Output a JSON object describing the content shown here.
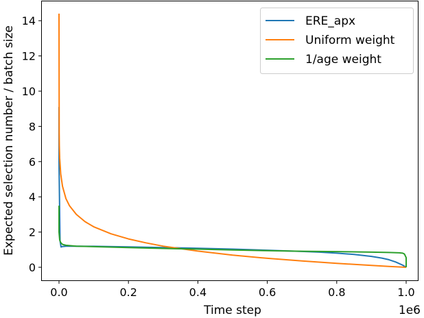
{
  "chart_data": {
    "type": "line",
    "title": "",
    "xlabel": "Time step",
    "ylabel": "Expected selection number / batch size",
    "x_offset_label": "1e6",
    "xlim": [
      -0.05,
      1.035
    ],
    "ylim": [
      -0.7,
      15.1
    ],
    "xticks": [
      0.0,
      0.2,
      0.4,
      0.6,
      0.8,
      1.0
    ],
    "xtick_labels": [
      "0.0",
      "0.2",
      "0.4",
      "0.6",
      "0.8",
      "1.0"
    ],
    "yticks": [
      0,
      2,
      4,
      6,
      8,
      10,
      12,
      14
    ],
    "ytick_labels": [
      "0",
      "2",
      "4",
      "6",
      "8",
      "10",
      "12",
      "14"
    ],
    "grid": false,
    "legend_position": "upper right",
    "series": [
      {
        "name": "ERE_apx",
        "color": "#1f77b4",
        "x": [
          0.0,
          0.0,
          0.003,
          0.006,
          0.01,
          0.02,
          0.05,
          0.1,
          0.2,
          0.3,
          0.4,
          0.5,
          0.6,
          0.7,
          0.75,
          0.8,
          0.85,
          0.9,
          0.93,
          0.95,
          0.97,
          0.99,
          1.0
        ],
        "values": [
          9.1,
          6.0,
          1.5,
          1.15,
          1.18,
          1.2,
          1.2,
          1.19,
          1.16,
          1.12,
          1.08,
          1.03,
          0.97,
          0.9,
          0.86,
          0.8,
          0.73,
          0.62,
          0.52,
          0.43,
          0.3,
          0.12,
          0.0
        ]
      },
      {
        "name": "Uniform weight",
        "color": "#ff7f0e",
        "x": [
          0.0,
          0.0005,
          0.001,
          0.002,
          0.005,
          0.01,
          0.02,
          0.03,
          0.05,
          0.075,
          0.1,
          0.15,
          0.2,
          0.25,
          0.3,
          0.4,
          0.5,
          0.6,
          0.7,
          0.8,
          0.9,
          0.95,
          1.0
        ],
        "values": [
          14.4,
          7.6,
          6.9,
          6.2,
          5.3,
          4.6,
          3.9,
          3.5,
          3.0,
          2.59,
          2.3,
          1.9,
          1.61,
          1.39,
          1.2,
          0.92,
          0.69,
          0.51,
          0.36,
          0.22,
          0.11,
          0.05,
          0.0
        ]
      },
      {
        "name": "1/age weight",
        "color": "#2ca02c",
        "x": [
          0.0,
          0.0,
          0.002,
          0.005,
          0.01,
          0.02,
          0.05,
          0.1,
          0.2,
          0.3,
          0.4,
          0.5,
          0.6,
          0.7,
          0.8,
          0.9,
          0.95,
          0.98,
          0.99,
          0.995,
          1.0,
          1.0
        ],
        "values": [
          3.5,
          2.0,
          1.55,
          1.4,
          1.3,
          1.25,
          1.2,
          1.17,
          1.12,
          1.07,
          1.03,
          0.98,
          0.94,
          0.91,
          0.89,
          0.86,
          0.84,
          0.82,
          0.8,
          0.75,
          0.55,
          0.0
        ]
      }
    ]
  }
}
